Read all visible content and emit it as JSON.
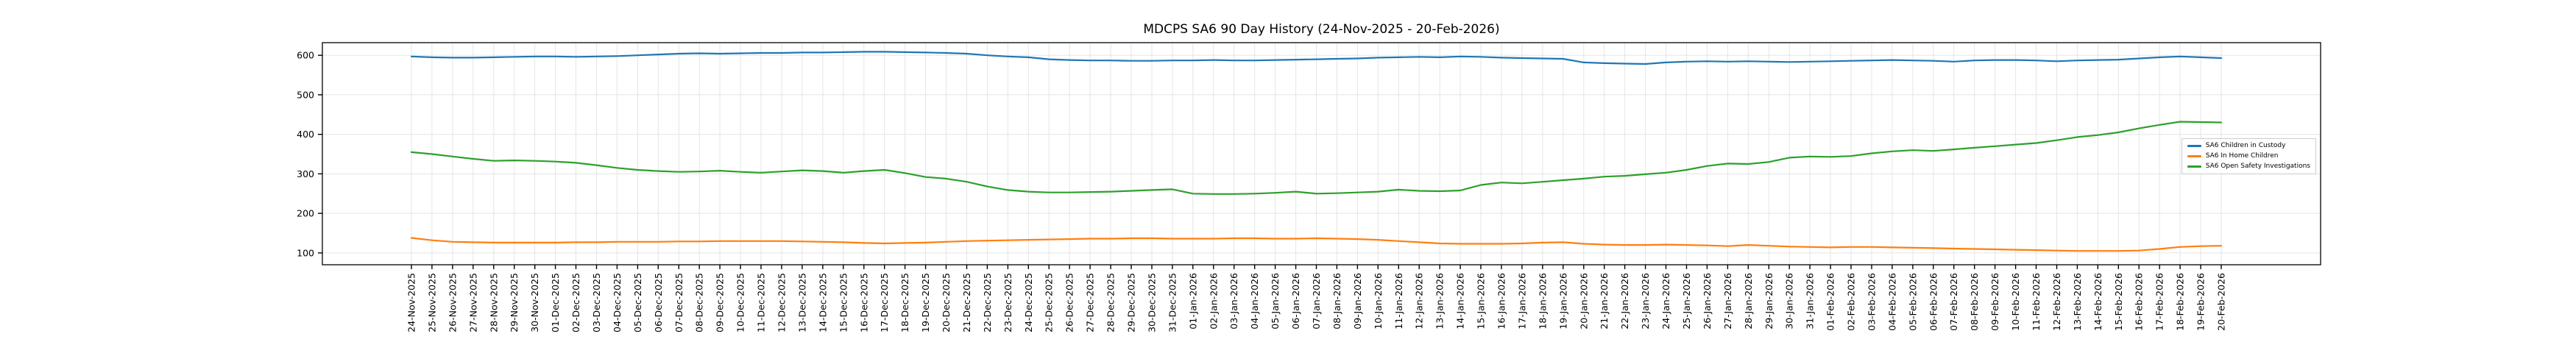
{
  "chart_data": {
    "type": "line",
    "title": "MDCPS SA6 90 Day History (24-Nov-2025 - 20-Feb-2026)",
    "xlabel": "",
    "ylabel": "",
    "grid": true,
    "legend_position": "right-inside",
    "ylim": [
      70,
      632
    ],
    "yticks": [
      100,
      200,
      300,
      400,
      500,
      600
    ],
    "x": [
      "24-Nov-2025",
      "25-Nov-2025",
      "26-Nov-2025",
      "27-Nov-2025",
      "28-Nov-2025",
      "29-Nov-2025",
      "30-Nov-2025",
      "01-Dec-2025",
      "02-Dec-2025",
      "03-Dec-2025",
      "04-Dec-2025",
      "05-Dec-2025",
      "06-Dec-2025",
      "07-Dec-2025",
      "08-Dec-2025",
      "09-Dec-2025",
      "10-Dec-2025",
      "11-Dec-2025",
      "12-Dec-2025",
      "13-Dec-2025",
      "14-Dec-2025",
      "15-Dec-2025",
      "16-Dec-2025",
      "17-Dec-2025",
      "18-Dec-2025",
      "19-Dec-2025",
      "20-Dec-2025",
      "21-Dec-2025",
      "22-Dec-2025",
      "23-Dec-2025",
      "24-Dec-2025",
      "25-Dec-2025",
      "26-Dec-2025",
      "27-Dec-2025",
      "28-Dec-2025",
      "29-Dec-2025",
      "30-Dec-2025",
      "31-Dec-2025",
      "01-Jan-2026",
      "02-Jan-2026",
      "03-Jan-2026",
      "04-Jan-2026",
      "05-Jan-2026",
      "06-Jan-2026",
      "07-Jan-2026",
      "08-Jan-2026",
      "09-Jan-2026",
      "10-Jan-2026",
      "11-Jan-2026",
      "12-Jan-2026",
      "13-Jan-2026",
      "14-Jan-2026",
      "15-Jan-2026",
      "16-Jan-2026",
      "17-Jan-2026",
      "18-Jan-2026",
      "19-Jan-2026",
      "20-Jan-2026",
      "21-Jan-2026",
      "22-Jan-2026",
      "23-Jan-2026",
      "24-Jan-2026",
      "25-Jan-2026",
      "26-Jan-2026",
      "27-Jan-2026",
      "28-Jan-2026",
      "29-Jan-2026",
      "30-Jan-2026",
      "31-Jan-2026",
      "01-Feb-2026",
      "02-Feb-2026",
      "03-Feb-2026",
      "04-Feb-2026",
      "05-Feb-2026",
      "06-Feb-2026",
      "07-Feb-2026",
      "08-Feb-2026",
      "09-Feb-2026",
      "10-Feb-2026",
      "11-Feb-2026",
      "12-Feb-2026",
      "13-Feb-2026",
      "14-Feb-2026",
      "15-Feb-2026",
      "16-Feb-2026",
      "17-Feb-2026",
      "18-Feb-2026",
      "19-Feb-2026",
      "20-Feb-2026"
    ],
    "series": [
      {
        "name": "SA6 Children in Custody",
        "color": "#1f77b4",
        "values": [
          597,
          595,
          594,
          594,
          595,
          596,
          597,
          597,
          596,
          597,
          598,
          600,
          602,
          604,
          605,
          604,
          605,
          606,
          606,
          607,
          607,
          608,
          609,
          609,
          608,
          607,
          606,
          604,
          600,
          597,
          595,
          590,
          588,
          587,
          587,
          586,
          586,
          587,
          587,
          588,
          587,
          587,
          588,
          589,
          590,
          591,
          592,
          594,
          595,
          596,
          595,
          597,
          596,
          594,
          593,
          592,
          591,
          582,
          580,
          579,
          578,
          582,
          584,
          585,
          584,
          585,
          584,
          583,
          584,
          585,
          586,
          587,
          588,
          587,
          586,
          584,
          587,
          588,
          588,
          587,
          585,
          587,
          588,
          589,
          592,
          595,
          597,
          595,
          593
        ]
      },
      {
        "name": "SA6 In Home Children",
        "color": "#ff7f0e",
        "values": [
          138,
          132,
          128,
          127,
          126,
          126,
          126,
          126,
          127,
          127,
          128,
          128,
          128,
          129,
          129,
          130,
          130,
          130,
          130,
          129,
          128,
          127,
          125,
          124,
          125,
          126,
          128,
          130,
          131,
          132,
          133,
          134,
          135,
          136,
          136,
          137,
          137,
          136,
          136,
          136,
          137,
          137,
          136,
          136,
          137,
          136,
          135,
          133,
          130,
          127,
          124,
          123,
          123,
          123,
          124,
          126,
          127,
          123,
          121,
          120,
          120,
          121,
          120,
          119,
          117,
          120,
          118,
          116,
          115,
          114,
          115,
          115,
          114,
          113,
          112,
          111,
          110,
          109,
          108,
          107,
          106,
          105,
          105,
          105,
          106,
          110,
          115,
          117,
          118
        ]
      },
      {
        "name": "SA6 Open Safety Investigations",
        "color": "#2ca02c",
        "values": [
          355,
          350,
          344,
          338,
          333,
          334,
          333,
          331,
          328,
          322,
          315,
          310,
          307,
          305,
          306,
          308,
          305,
          303,
          306,
          309,
          307,
          303,
          307,
          310,
          302,
          292,
          288,
          280,
          268,
          259,
          255,
          253,
          253,
          254,
          255,
          257,
          259,
          261,
          250,
          249,
          249,
          250,
          252,
          255,
          250,
          251,
          253,
          255,
          260,
          257,
          256,
          258,
          272,
          278,
          276,
          280,
          284,
          288,
          293,
          295,
          299,
          303,
          310,
          320,
          326,
          325,
          330,
          341,
          344,
          343,
          345,
          352,
          357,
          360,
          358,
          362,
          366,
          370,
          374,
          378,
          385,
          393,
          398,
          405,
          415,
          424,
          432,
          431,
          430
        ]
      }
    ]
  }
}
